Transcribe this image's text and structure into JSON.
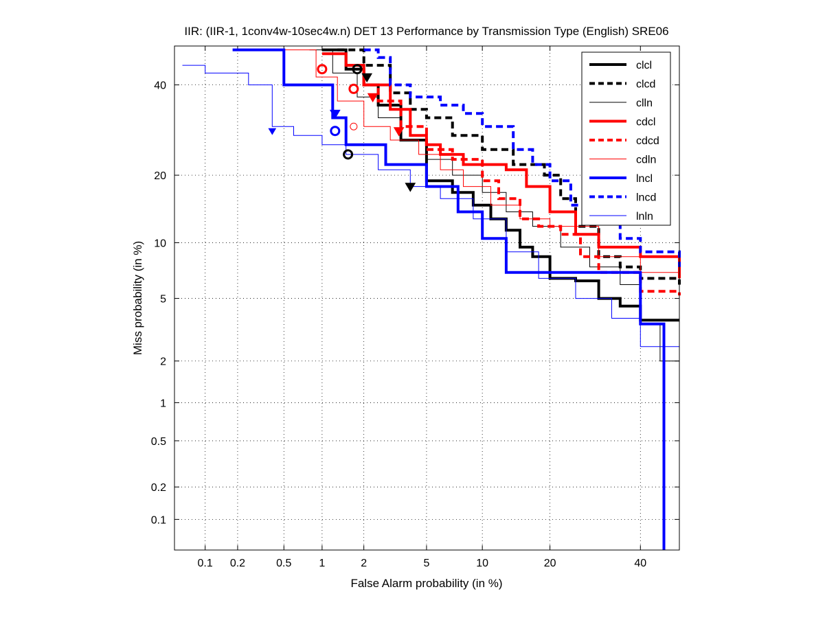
{
  "chart_data": {
    "type": "line",
    "title": "IIR: (IIR-1, 1conv4w-10sec4w.n) DET 13 Performance by Transmission Type (English) SRE06",
    "xlabel": "False Alarm probability (in %)",
    "ylabel": "Miss probability (in %)",
    "x_scale": "probit",
    "y_scale": "probit",
    "xlim": [
      0.05,
      50
    ],
    "ylim": [
      0.05,
      50
    ],
    "grid": true,
    "legend_position": "top-right",
    "xticks": [
      0.1,
      0.2,
      0.5,
      1,
      2,
      5,
      10,
      20,
      40
    ],
    "xtick_labels": [
      "0.1",
      "0.2",
      "0.5",
      "1",
      "2",
      "5",
      "10",
      "20",
      "40"
    ],
    "yticks": [
      0.1,
      0.2,
      0.5,
      1,
      2,
      5,
      10,
      20,
      40
    ],
    "ytick_labels": [
      "0.1",
      "0.2",
      "0.5",
      "1",
      "2",
      "5",
      "10",
      "20",
      "40"
    ],
    "series": [
      {
        "name": "clcl",
        "color": "#000000",
        "style": "solid",
        "width": "thick",
        "x": [
          1.0,
          1.5,
          2.0,
          2.5,
          3.5,
          5.0,
          7.0,
          9.0,
          11,
          13,
          15,
          17,
          20,
          25,
          30,
          35,
          40,
          50
        ],
        "y": [
          49,
          44,
          40,
          35,
          27,
          19,
          17,
          15,
          13,
          11.5,
          9.5,
          8.5,
          6.5,
          6.3,
          5.0,
          4.5,
          3.7,
          3.7
        ],
        "act_point": {
          "x": 4.0,
          "y": 18
        },
        "min_point": {
          "x": 1.55,
          "y": 24
        }
      },
      {
        "name": "clcd",
        "color": "#000000",
        "style": "dashed",
        "width": "thick",
        "x": [
          1.3,
          2.0,
          3.0,
          4.0,
          5.0,
          7.0,
          10,
          14,
          19,
          22,
          25,
          30,
          35,
          40,
          50
        ],
        "y": [
          49,
          45,
          38,
          34,
          32,
          28,
          25,
          22,
          20,
          16,
          12,
          8.5,
          7.5,
          6.5,
          6.0
        ],
        "act_point": {
          "x": 2.1,
          "y": 42
        },
        "min_point": {
          "x": 1.8,
          "y": 44
        }
      },
      {
        "name": "clln",
        "color": "#000000",
        "style": "solid",
        "width": "thin",
        "x": [
          0.8,
          1.2,
          1.8,
          2.5,
          3.5,
          5.0,
          7.0,
          10,
          13,
          17,
          22,
          28,
          35,
          40,
          45,
          50
        ],
        "y": [
          49,
          43,
          37,
          32,
          27,
          23,
          20,
          17,
          14,
          12,
          9.5,
          7.5,
          6.0,
          3.5,
          2.0,
          1.9
        ],
        "act_point": null,
        "min_point": null
      },
      {
        "name": "cdcl",
        "color": "#ff0000",
        "style": "solid",
        "width": "thick",
        "x": [
          1.0,
          1.5,
          2.0,
          3.0,
          4.0,
          5.0,
          6.0,
          8.0,
          10,
          13,
          16,
          20,
          25,
          30,
          40,
          50
        ],
        "y": [
          48,
          45,
          40,
          34,
          28,
          26,
          24,
          22,
          22,
          21,
          18,
          14,
          11,
          9.5,
          8.5,
          6.5
        ],
        "act_point": {
          "x": 3.4,
          "y": 29
        },
        "min_point": {
          "x": 1.0,
          "y": 44
        }
      },
      {
        "name": "cdcd",
        "color": "#ff0000",
        "style": "dashed",
        "width": "thick",
        "x": [
          1.5,
          2.0,
          2.5,
          3.5,
          5.0,
          7.0,
          10,
          12,
          15,
          18,
          22,
          26,
          30,
          40,
          50
        ],
        "y": [
          45,
          40,
          36,
          30,
          25,
          23,
          19,
          16,
          13,
          12,
          11,
          8.5,
          7.0,
          5.5,
          5.2
        ],
        "act_point": {
          "x": 2.3,
          "y": 37
        },
        "min_point": {
          "x": 1.7,
          "y": 39
        }
      },
      {
        "name": "cdln",
        "color": "#ff0000",
        "style": "solid",
        "width": "thin",
        "x": [
          0.5,
          0.9,
          1.3,
          2.0,
          3.0,
          4.5,
          6.0,
          8.0,
          11,
          15,
          20,
          30,
          40,
          50
        ],
        "y": [
          49,
          42,
          36,
          30,
          27,
          24,
          21,
          18,
          15,
          13,
          12,
          8.5,
          7.0,
          6.8
        ],
        "act_point": null,
        "min_point": {
          "x": 1.7,
          "y": 30
        }
      },
      {
        "name": "lncl",
        "color": "#0000ff",
        "style": "solid",
        "width": "thick",
        "x": [
          0.18,
          0.5,
          1.2,
          1.5,
          2.8,
          5.0,
          7.5,
          10,
          13,
          20,
          28,
          36,
          40,
          44,
          46
        ],
        "y": [
          49,
          40,
          32,
          26,
          22,
          18,
          14,
          10.5,
          7.0,
          7.0,
          7.0,
          7.0,
          3.5,
          3.5,
          0.05
        ],
        "act_point": {
          "x": 1.25,
          "y": 33
        },
        "min_point": {
          "x": 1.25,
          "y": 29
        }
      },
      {
        "name": "lncd",
        "color": "#0000ff",
        "style": "dashed",
        "width": "thick",
        "x": [
          2.0,
          2.5,
          3.0,
          4.0,
          6.0,
          8.0,
          10,
          14,
          17,
          20,
          24,
          28,
          35,
          40,
          50
        ],
        "y": [
          49,
          47,
          40,
          37,
          35,
          33,
          30,
          25,
          22,
          19,
          15,
          13,
          10.5,
          9.0,
          7.5
        ],
        "act_point": null,
        "min_point": null
      },
      {
        "name": "lnln",
        "color": "#0000ff",
        "style": "solid",
        "width": "thin",
        "x": [
          0.06,
          0.1,
          0.25,
          0.4,
          0.6,
          1.0,
          1.5,
          2.5,
          4.0,
          6.0,
          9.0,
          13,
          18,
          25,
          33,
          40,
          50
        ],
        "y": [
          45,
          43,
          40,
          30,
          28,
          26,
          24,
          21,
          18,
          16,
          13,
          9,
          6.5,
          5.0,
          3.8,
          2.5,
          2.4
        ],
        "act_point": {
          "x": 0.4,
          "y": 29
        },
        "min_point": null
      }
    ]
  }
}
